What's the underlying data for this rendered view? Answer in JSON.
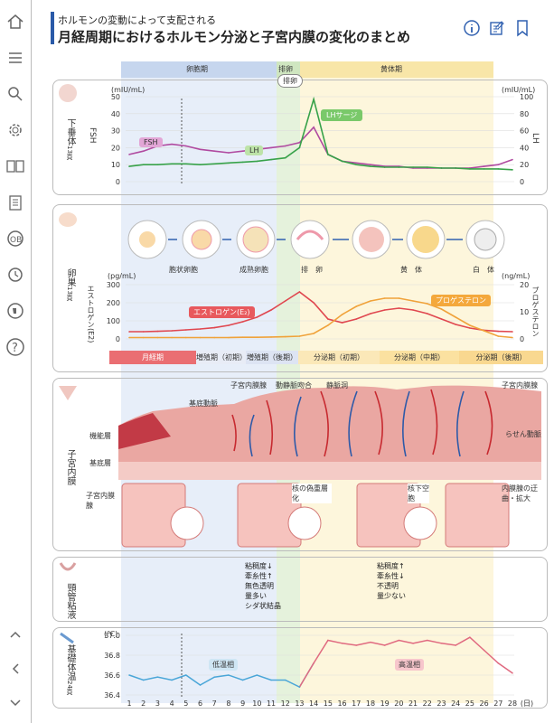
{
  "header": {
    "subtitle": "ホルモンの変動によって支配される",
    "title": "月経周期におけるホルモン分泌と子宮内膜の変化のまとめ"
  },
  "phases": [
    "卵胞期",
    "排卵",
    "黄体期"
  ],
  "sections": {
    "pituitary": {
      "label": "下垂体",
      "ref": "13頁"
    },
    "ovary": {
      "label": "卵巣",
      "ref": "13頁"
    },
    "uterus": {
      "label": "子宮内膜"
    },
    "cervix": {
      "label": "頸管粘液"
    },
    "bbt": {
      "label": "基礎体温",
      "ref": "24頁"
    }
  },
  "pituitary_axes": {
    "left_unit": "(mIU/mL)",
    "right_unit": "(mIU/mL)",
    "left_title": "FSH",
    "right_title": "LH",
    "left_ticks": [
      "50",
      "40",
      "30",
      "20",
      "10",
      "0"
    ],
    "right_ticks": [
      "100",
      "80",
      "60",
      "40",
      "20",
      "0"
    ]
  },
  "pituitary_labels": {
    "ovulation": "排卵",
    "lh_surge": "LHサージ",
    "fsh": "FSH",
    "lh": "LH"
  },
  "follicles": [
    "胞状卵胞",
    "成熟卵胞",
    "排　卵",
    "黄　体",
    "白　体"
  ],
  "ovary_axes": {
    "left_unit": "(pg/mL)",
    "right_unit": "(ng/mL)",
    "left_title": "エストロゲン(E2)",
    "right_title": "プロゲステロン",
    "left_ticks": [
      "300",
      "200",
      "100",
      "0"
    ],
    "right_ticks": [
      "20",
      "10",
      "0"
    ]
  },
  "ovary_labels": {
    "estrogen": "エストロゲン(E₂)",
    "progesterone": "プロゲステロン"
  },
  "periods": [
    "月経期",
    "増殖期（初期）",
    "増殖期（後期）",
    "分泌期（初期）",
    "分泌期（中期）",
    "分泌期（後期）"
  ],
  "uterus_labels": {
    "basal_artery": "基底動脈",
    "gland": "子宮内膜腺",
    "av": "動静脈吻合",
    "sinus": "静脈洞",
    "gland2": "子宮内膜腺",
    "spiral": "らせん動脈",
    "functional": "機能層",
    "basal": "基底層",
    "uterine_gland": "子宮内膜腺",
    "pseudo": "核の偽重層化",
    "subnuclear": "核下空胞",
    "tortuous": "内膜腺の迂曲・拡大"
  },
  "mucus_left": [
    "粘稠度↓",
    "牽糸性↑",
    "無色透明",
    "量多い",
    "シダ状結晶"
  ],
  "mucus_right": [
    "粘稠度↑",
    "牽糸性↓",
    "不透明",
    "量少ない"
  ],
  "bbt_labels": {
    "unit": "(℃)",
    "low": "低温相",
    "high": "高温相",
    "day_unit": "(日)"
  },
  "chart_data": [
    {
      "type": "line",
      "title": "",
      "x": [
        1,
        2,
        3,
        4,
        5,
        6,
        7,
        8,
        9,
        10,
        11,
        12,
        13,
        14,
        15,
        16,
        17,
        18,
        19,
        20,
        21,
        22,
        23,
        24,
        25,
        26,
        27,
        28
      ],
      "series": [
        {
          "name": "FSH",
          "axis": "left",
          "values": [
            16,
            18,
            21,
            22,
            21,
            19,
            18,
            17,
            18,
            19,
            20,
            21,
            23,
            32,
            16,
            12,
            11,
            10,
            9,
            9,
            8,
            8,
            8,
            8,
            8,
            9,
            10,
            13
          ]
        },
        {
          "name": "LH",
          "axis": "right",
          "values": [
            18,
            20,
            20,
            21,
            21,
            20,
            21,
            22,
            23,
            24,
            26,
            28,
            40,
            97,
            32,
            24,
            20,
            18,
            17,
            17,
            17,
            17,
            16,
            16,
            15,
            15,
            15,
            14
          ]
        }
      ],
      "ylim_left": [
        0,
        50
      ],
      "ylim_right": [
        0,
        100
      ]
    },
    {
      "type": "line",
      "title": "",
      "x": [
        1,
        2,
        3,
        4,
        5,
        6,
        7,
        8,
        9,
        10,
        11,
        12,
        13,
        14,
        15,
        16,
        17,
        18,
        19,
        20,
        21,
        22,
        23,
        24,
        25,
        26,
        27,
        28
      ],
      "series": [
        {
          "name": "エストロゲン(E₂)",
          "axis": "left",
          "values": [
            40,
            40,
            42,
            45,
            50,
            55,
            62,
            75,
            95,
            120,
            160,
            210,
            260,
            200,
            110,
            90,
            110,
            140,
            160,
            170,
            160,
            140,
            110,
            80,
            60,
            48,
            42,
            40
          ]
        },
        {
          "name": "プロゲステロン",
          "axis": "right",
          "values": [
            0.5,
            0.5,
            0.5,
            0.5,
            0.5,
            0.5,
            0.5,
            0.5,
            0.6,
            0.6,
            0.7,
            0.8,
            1,
            2,
            5,
            9,
            12,
            14,
            15,
            15,
            14,
            13,
            11,
            8,
            5,
            3,
            1,
            0.5
          ]
        }
      ],
      "ylim_left": [
        0,
        300
      ],
      "ylim_right": [
        0,
        20
      ]
    },
    {
      "type": "line",
      "title": "",
      "x": [
        1,
        2,
        3,
        4,
        5,
        6,
        7,
        8,
        9,
        10,
        11,
        12,
        13,
        14,
        15,
        16,
        17,
        18,
        19,
        20,
        21,
        22,
        23,
        24,
        25,
        26,
        27,
        28
      ],
      "series": [
        {
          "name": "",
          "values": [
            36.6,
            36.55,
            36.58,
            36.55,
            36.6,
            36.5,
            36.58,
            36.6,
            36.55,
            36.6,
            36.55,
            36.55,
            36.48,
            36.72,
            36.95,
            36.92,
            36.9,
            36.93,
            36.9,
            36.95,
            36.92,
            36.95,
            36.92,
            36.9,
            36.98,
            36.85,
            36.72,
            36.62
          ]
        }
      ],
      "yticks": [
        "37.0",
        "36.8",
        "36.6",
        "36.4"
      ],
      "ylim": [
        36.4,
        37.0
      ],
      "xunit": "(日)"
    }
  ]
}
